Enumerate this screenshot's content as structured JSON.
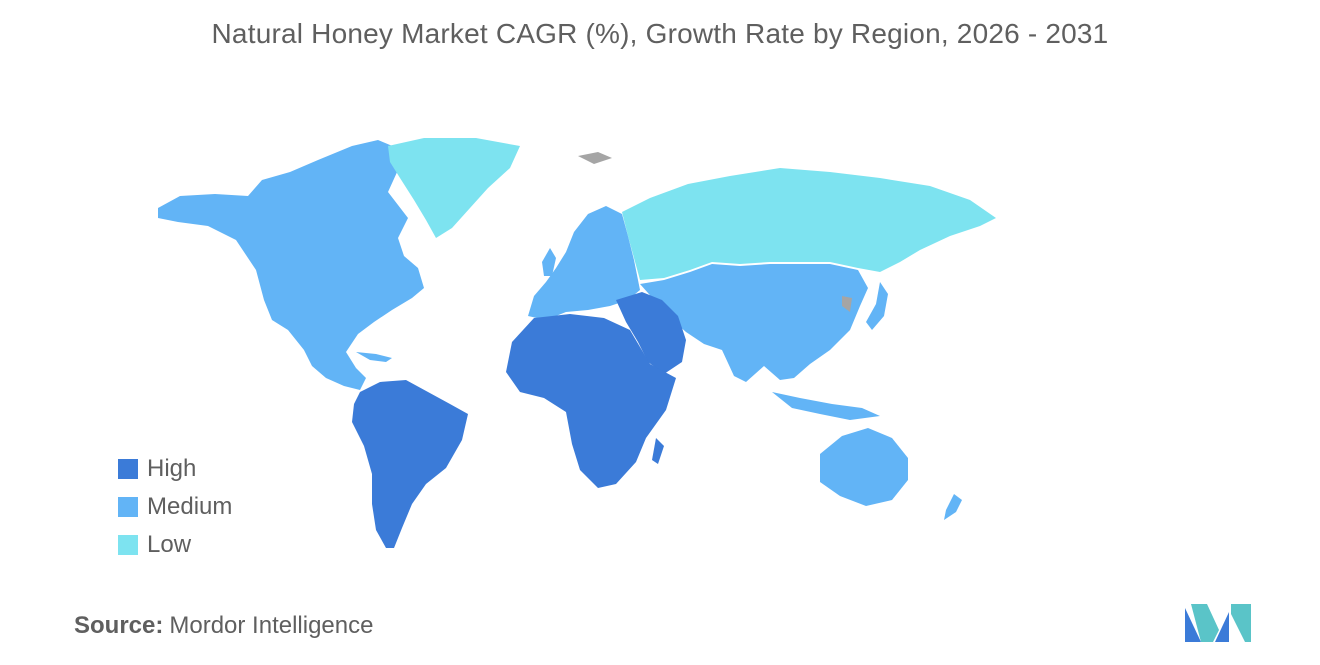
{
  "title": "Natural Honey Market CAGR (%), Growth Rate by Region, 2026 - 2031",
  "legend": {
    "items": [
      {
        "label": "High",
        "color": "#3b7bd8"
      },
      {
        "label": "Medium",
        "color": "#62b4f6"
      },
      {
        "label": "Low",
        "color": "#7de3f0"
      }
    ]
  },
  "colors": {
    "high": "#3b7bd8",
    "medium": "#62b4f6",
    "low": "#7de3f0",
    "no_data": "#a5a5a5"
  },
  "regions": {
    "north_america": "Medium",
    "south_america": "High",
    "europe": "Medium",
    "russia": "Low",
    "greenland": "Low",
    "middle_east": "High",
    "africa": "High",
    "asia_pacific": "Medium",
    "oceania": "Medium"
  },
  "source": {
    "label": "Source:",
    "value": "Mordor Intelligence"
  },
  "logo": {
    "icon": "mordor-intelligence-logo-icon"
  }
}
